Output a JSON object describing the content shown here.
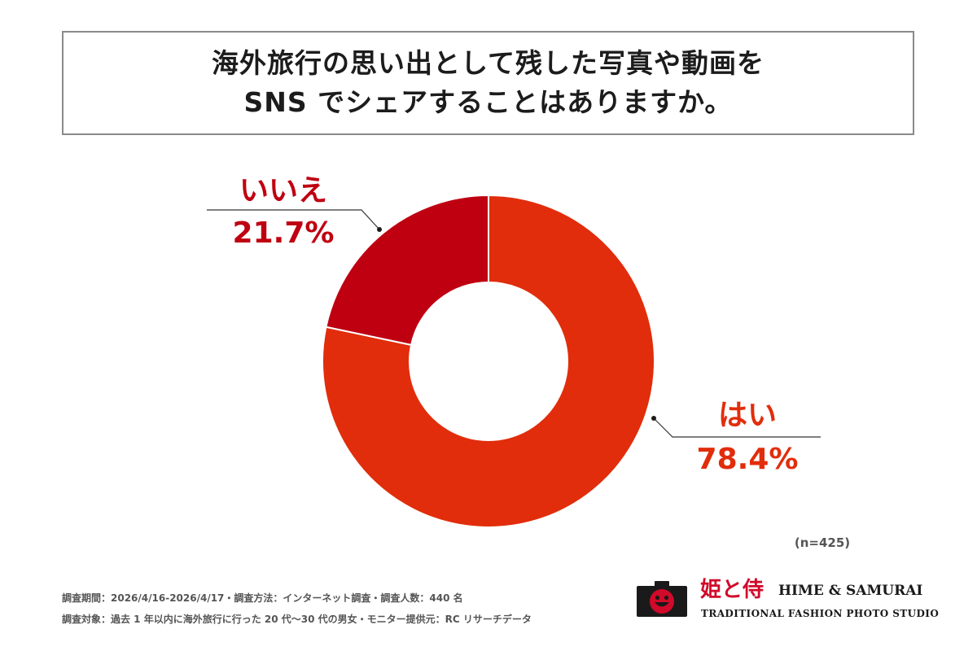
{
  "header": {
    "title_line1": "海外旅行の思い出として残した写真や動画を",
    "title_line2": "SNS でシェアすることはありますか。"
  },
  "chart_data": {
    "type": "pie",
    "donut": true,
    "slices": [
      {
        "label": "はい",
        "value": 78.4,
        "value_label": "78.4%",
        "color": "#e12d0b"
      },
      {
        "label": "いいえ",
        "value": 21.7,
        "value_label": "21.7%",
        "color": "#bf0011"
      }
    ],
    "sample_size": "(n=425)"
  },
  "footer": {
    "line1": "調査期間：2026/4/16-2026/4/17・調査方法：インターネット調査・調査人数：440 名",
    "line2": "調査対象：過去 1 年以内に海外旅行に行った 20 代〜30 代の男女・モニター提供元：RC リサーチデータ"
  },
  "logo": {
    "kanji": "姫と侍",
    "name": "HIME & SAMURAI",
    "tagline": "TRADITIONAL FASHION PHOTO STUDIO",
    "icon": "camera-smile-icon",
    "color": "#d10a2a"
  }
}
